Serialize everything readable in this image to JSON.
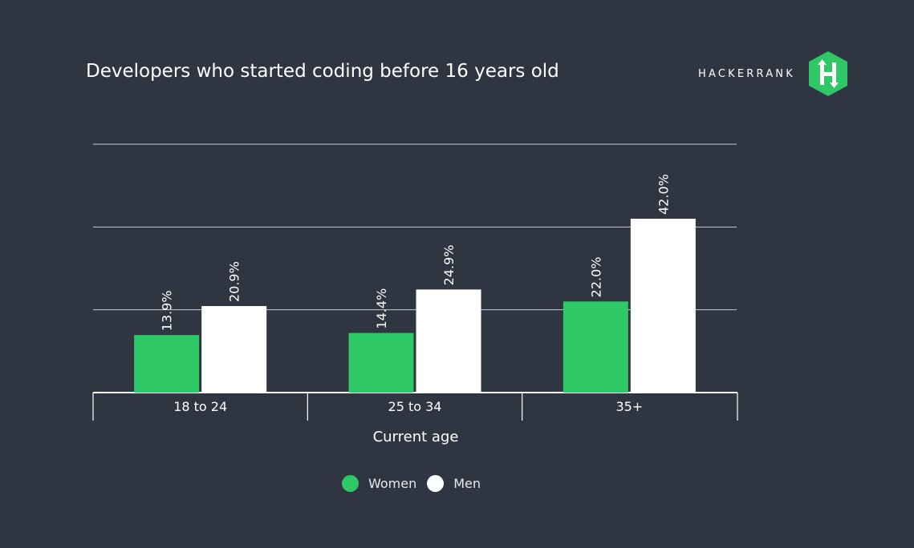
{
  "title": "Developers who started coding before 16 years old",
  "brand": {
    "name": "HACKERRANK",
    "logo_letter": "H",
    "logo_color": "#2ec866"
  },
  "colors": {
    "background": "#2f3541",
    "women": "#2ec866",
    "men": "#ffffff",
    "gridline": "#c9ccd1",
    "axis": "#ffffff"
  },
  "chart_data": {
    "type": "bar",
    "categories": [
      "18 to 24",
      "25 to 34",
      "35+"
    ],
    "series": [
      {
        "name": "Women",
        "values": [
          13.9,
          14.4,
          22.0
        ],
        "labels": [
          "13.9%",
          "14.4%",
          "22.0%"
        ]
      },
      {
        "name": "Men",
        "values": [
          20.9,
          24.9,
          42.0
        ],
        "labels": [
          "20.9%",
          "24.9%",
          "42.0%"
        ]
      }
    ],
    "title": "Developers who started coding before 16 years old",
    "xlabel": "Current age",
    "ylabel": "",
    "ylim": [
      0,
      60
    ],
    "gridlines": [
      20,
      40,
      60
    ],
    "grid": true,
    "legend_position": "bottom-center"
  }
}
